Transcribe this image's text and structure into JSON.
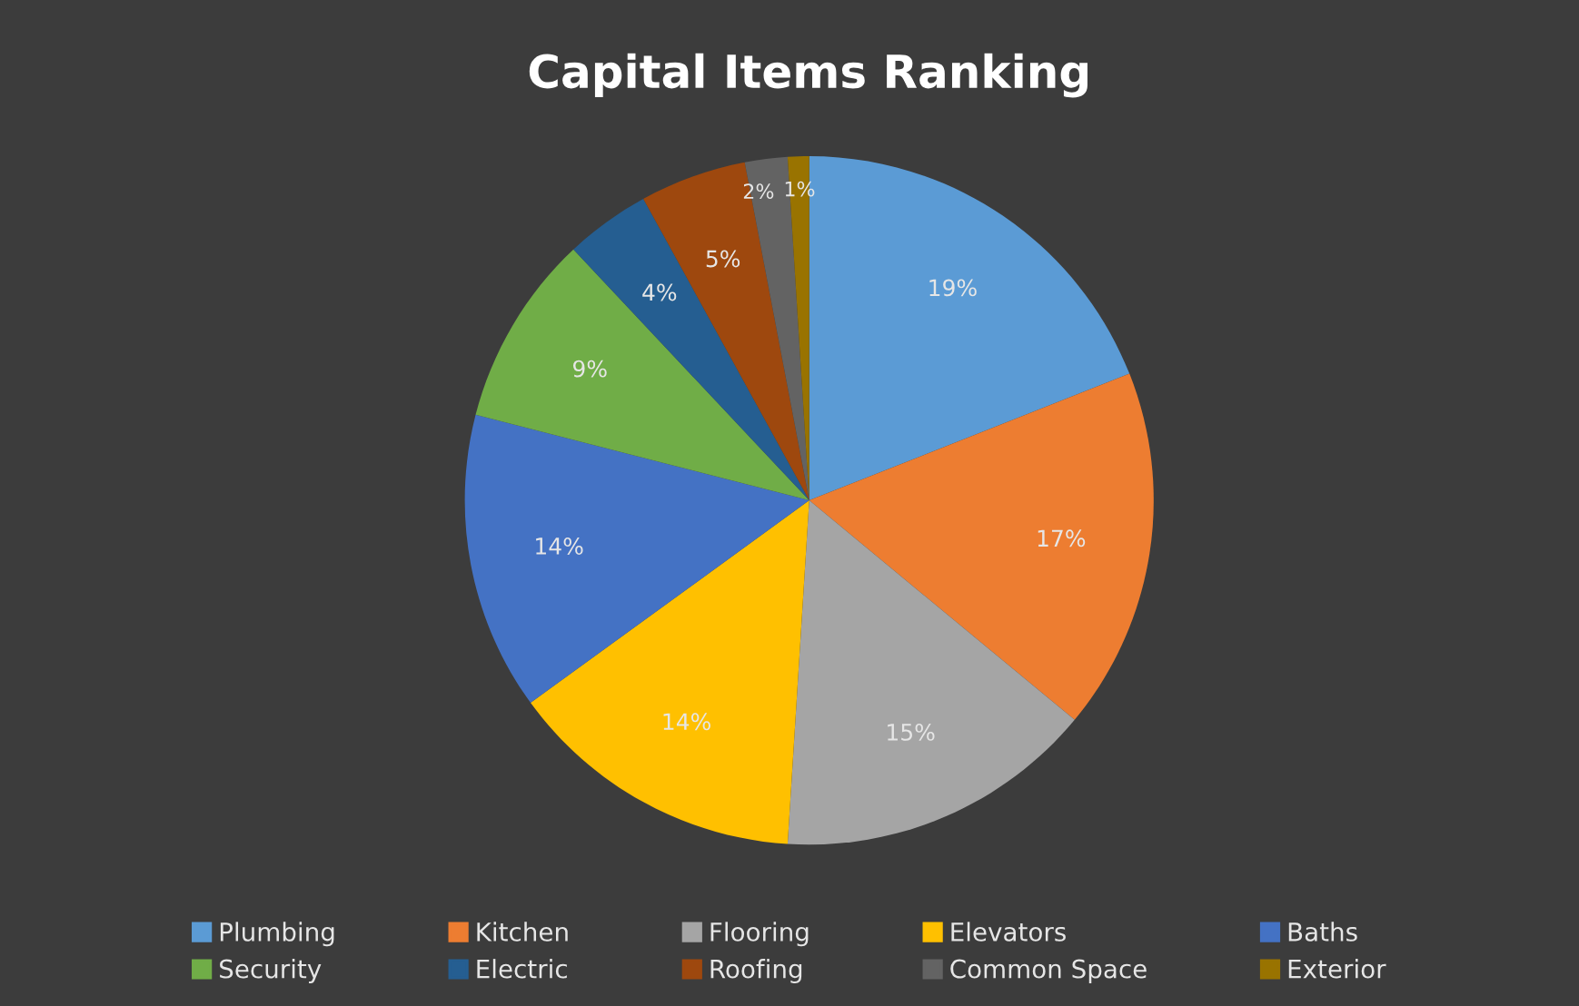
{
  "chart_data": {
    "type": "pie",
    "title": "Capital Items Ranking",
    "categories": [
      "Plumbing",
      "Kitchen",
      "Flooring",
      "Elevators",
      "Baths",
      "Security",
      "Electric",
      "Roofing",
      "Common Space",
      "Exterior"
    ],
    "values": [
      19,
      17,
      15,
      14,
      14,
      9,
      4,
      5,
      2,
      1
    ],
    "colors": [
      "#5b9bd5",
      "#ed7d31",
      "#a5a5a5",
      "#ffc000",
      "#4472c4",
      "#70ad47",
      "#255e91",
      "#9e480e",
      "#636363",
      "#997300"
    ],
    "value_labels": [
      "19%",
      "17%",
      "15%",
      "14%",
      "14%",
      "9%",
      "4%",
      "5%",
      "2%",
      "1%"
    ],
    "legend": "bottom"
  }
}
